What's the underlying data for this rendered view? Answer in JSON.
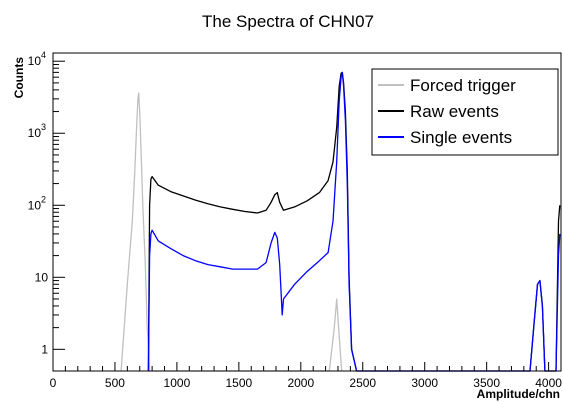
{
  "chart_data": {
    "type": "line",
    "title": "The Spectra of CHN07",
    "xlabel": "Amplitude/chn",
    "ylabel": "Counts",
    "xlim": [
      0,
      4100
    ],
    "ylim": [
      0.5,
      13000
    ],
    "yscale": "log",
    "x_ticks": [
      0,
      500,
      1000,
      1500,
      2000,
      2500,
      3000,
      3500,
      4000
    ],
    "x_tick_labels": [
      "0",
      "500",
      "1000",
      "1500",
      "2000",
      "2500",
      "3000",
      "3500",
      "4000"
    ],
    "y_ticks": [
      1,
      10,
      100,
      1000,
      10000
    ],
    "y_tick_labels": [
      "1",
      "10",
      "10^2",
      "10^3",
      "10^4"
    ],
    "grid": false,
    "legend_position": "top-right",
    "series": [
      {
        "name": "Forced trigger",
        "color": "#c0c0c0",
        "points": [
          [
            550,
            0.5
          ],
          [
            600,
            8
          ],
          [
            640,
            60
          ],
          [
            660,
            300
          ],
          [
            675,
            1200
          ],
          [
            685,
            3000
          ],
          [
            692,
            3600
          ],
          [
            700,
            2000
          ],
          [
            710,
            600
          ],
          [
            725,
            100
          ],
          [
            745,
            15
          ],
          [
            760,
            2
          ],
          [
            780,
            0.5
          ],
          [
            2230,
            0.5
          ],
          [
            2270,
            2
          ],
          [
            2290,
            5
          ],
          [
            2305,
            2
          ],
          [
            2330,
            0.5
          ]
        ]
      },
      {
        "name": "Raw events",
        "color": "#000000",
        "points": [
          [
            770,
            0.5
          ],
          [
            780,
            100
          ],
          [
            790,
            230
          ],
          [
            800,
            250
          ],
          [
            850,
            190
          ],
          [
            950,
            155
          ],
          [
            1050,
            135
          ],
          [
            1150,
            118
          ],
          [
            1250,
            105
          ],
          [
            1350,
            95
          ],
          [
            1450,
            88
          ],
          [
            1550,
            82
          ],
          [
            1650,
            78
          ],
          [
            1720,
            85
          ],
          [
            1760,
            110
          ],
          [
            1790,
            140
          ],
          [
            1810,
            150
          ],
          [
            1830,
            110
          ],
          [
            1860,
            85
          ],
          [
            1950,
            95
          ],
          [
            2050,
            115
          ],
          [
            2150,
            150
          ],
          [
            2220,
            220
          ],
          [
            2260,
            400
          ],
          [
            2290,
            1200
          ],
          [
            2310,
            4500
          ],
          [
            2325,
            6800
          ],
          [
            2335,
            7000
          ],
          [
            2345,
            5000
          ],
          [
            2360,
            2000
          ],
          [
            2375,
            300
          ],
          [
            2390,
            10
          ],
          [
            2410,
            1
          ],
          [
            2450,
            0.5
          ],
          [
            3850,
            0.5
          ],
          [
            3880,
            2
          ],
          [
            3910,
            8
          ],
          [
            3930,
            9
          ],
          [
            3950,
            4
          ],
          [
            3970,
            0.5
          ],
          [
            4060,
            0.5
          ],
          [
            4080,
            60
          ],
          [
            4090,
            100
          ]
        ]
      },
      {
        "name": "Single events",
        "color": "#0000ff",
        "points": [
          [
            770,
            0.5
          ],
          [
            780,
            20
          ],
          [
            790,
            40
          ],
          [
            800,
            45
          ],
          [
            850,
            32
          ],
          [
            950,
            25
          ],
          [
            1050,
            20
          ],
          [
            1150,
            17
          ],
          [
            1250,
            15
          ],
          [
            1350,
            14
          ],
          [
            1450,
            13
          ],
          [
            1550,
            13
          ],
          [
            1650,
            13
          ],
          [
            1720,
            16
          ],
          [
            1760,
            30
          ],
          [
            1790,
            42
          ],
          [
            1810,
            35
          ],
          [
            1830,
            15
          ],
          [
            1850,
            3
          ],
          [
            1860,
            5
          ],
          [
            1950,
            8
          ],
          [
            2050,
            12
          ],
          [
            2150,
            17
          ],
          [
            2220,
            22
          ],
          [
            2260,
            60
          ],
          [
            2290,
            400
          ],
          [
            2310,
            2800
          ],
          [
            2325,
            6000
          ],
          [
            2335,
            7000
          ],
          [
            2345,
            4500
          ],
          [
            2360,
            1500
          ],
          [
            2375,
            200
          ],
          [
            2390,
            8
          ],
          [
            2410,
            1
          ],
          [
            2450,
            0.5
          ],
          [
            3850,
            0.5
          ],
          [
            3880,
            2
          ],
          [
            3910,
            8
          ],
          [
            3930,
            9
          ],
          [
            3950,
            4
          ],
          [
            3970,
            0.5
          ],
          [
            4060,
            0.5
          ],
          [
            4080,
            20
          ],
          [
            4090,
            40
          ]
        ]
      }
    ]
  }
}
